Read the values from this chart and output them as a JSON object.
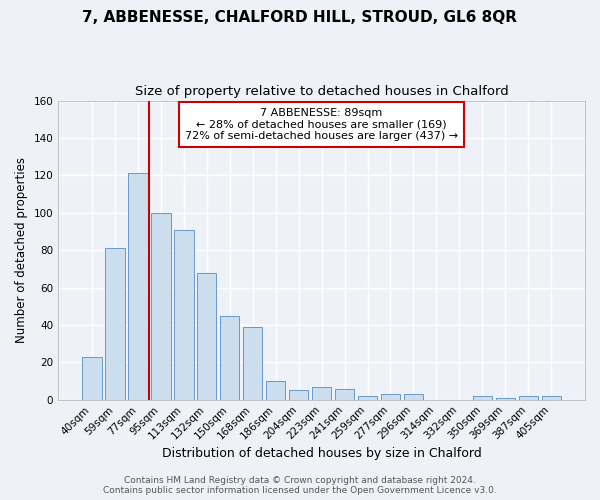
{
  "title": "7, ABBENESSE, CHALFORD HILL, STROUD, GL6 8QR",
  "subtitle": "Size of property relative to detached houses in Chalford",
  "xlabel": "Distribution of detached houses by size in Chalford",
  "ylabel": "Number of detached properties",
  "bar_labels": [
    "40sqm",
    "59sqm",
    "77sqm",
    "95sqm",
    "113sqm",
    "132sqm",
    "150sqm",
    "168sqm",
    "186sqm",
    "204sqm",
    "223sqm",
    "241sqm",
    "259sqm",
    "277sqm",
    "296sqm",
    "314sqm",
    "332sqm",
    "350sqm",
    "369sqm",
    "387sqm",
    "405sqm"
  ],
  "bar_values": [
    23,
    81,
    121,
    100,
    91,
    68,
    45,
    39,
    10,
    5,
    7,
    6,
    2,
    3,
    3,
    0,
    0,
    2,
    1,
    2,
    2
  ],
  "bar_color": "#ccdded",
  "bar_edge_color": "#6699cc",
  "background_color": "#eef2f8",
  "grid_color": "#ffffff",
  "vline_color": "#cc0000",
  "annotation_title": "7 ABBENESSE: 89sqm",
  "annotation_line1": "← 28% of detached houses are smaller (169)",
  "annotation_line2": "72% of semi-detached houses are larger (437) →",
  "annotation_box_color": "#ffffff",
  "annotation_box_edge": "#cc0000",
  "ylim": [
    0,
    160
  ],
  "yticks": [
    0,
    20,
    40,
    60,
    80,
    100,
    120,
    140,
    160
  ],
  "footer1": "Contains HM Land Registry data © Crown copyright and database right 2024.",
  "footer2": "Contains public sector information licensed under the Open Government Licence v3.0.",
  "title_fontsize": 11,
  "subtitle_fontsize": 9.5,
  "xlabel_fontsize": 9,
  "ylabel_fontsize": 8.5,
  "tick_fontsize": 7.5,
  "footer_fontsize": 6.5,
  "annotation_fontsize": 8
}
